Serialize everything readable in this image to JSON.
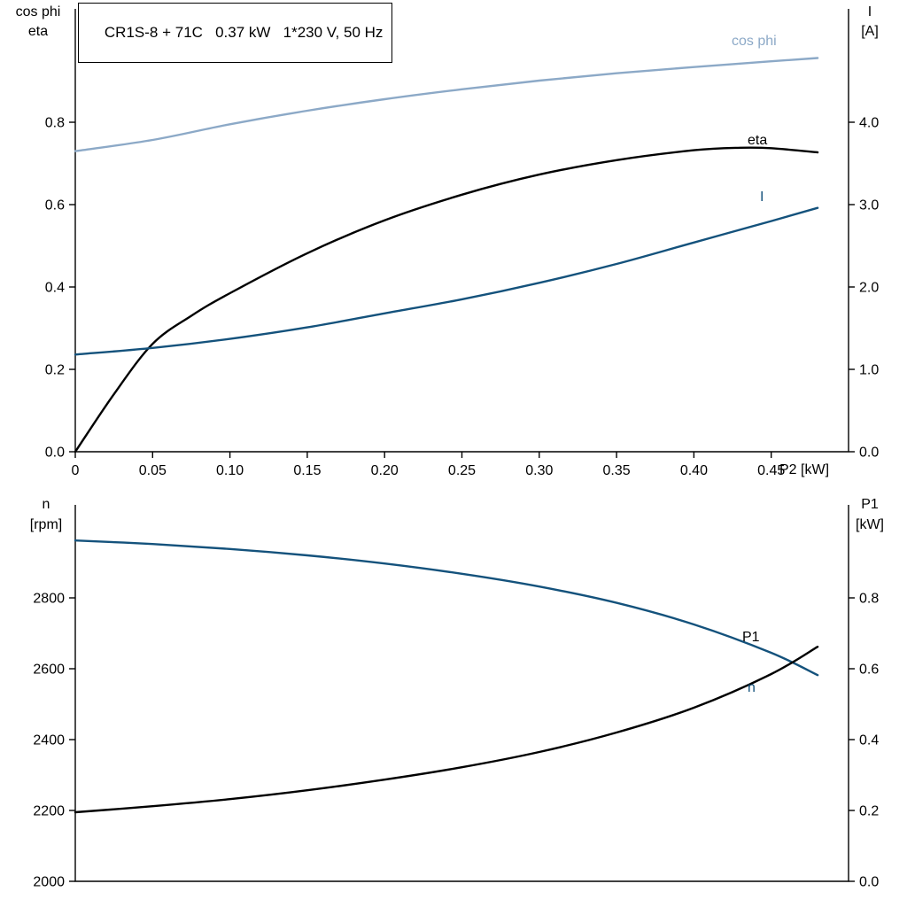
{
  "chart_data": [
    {
      "type": "line",
      "title": "CR1S-8 + 71C   0.37 kW   1*230 V, 50 Hz",
      "x": {
        "label": "P2 [kW]",
        "min": 0,
        "max": 0.5,
        "ticks": [
          {
            "v": 0,
            "label": "0"
          },
          {
            "v": 0.05,
            "label": "0.05"
          },
          {
            "v": 0.1,
            "label": "0.10"
          },
          {
            "v": 0.15,
            "label": "0.15"
          },
          {
            "v": 0.2,
            "label": "0.20"
          },
          {
            "v": 0.25,
            "label": "0.25"
          },
          {
            "v": 0.3,
            "label": "0.30"
          },
          {
            "v": 0.35,
            "label": "0.35"
          },
          {
            "v": 0.4,
            "label": "0.40"
          },
          {
            "v": 0.45,
            "label": "0.45"
          }
        ]
      },
      "left": {
        "label1": "cos phi",
        "label2": "eta",
        "min": 0,
        "max": 1.0753,
        "ticks": [
          {
            "v": 0.0,
            "label": "0.0"
          },
          {
            "v": 0.2,
            "label": "0.2"
          },
          {
            "v": 0.4,
            "label": "0.4"
          },
          {
            "v": 0.6,
            "label": "0.6"
          },
          {
            "v": 0.8,
            "label": "0.8"
          }
        ]
      },
      "right": {
        "label1": "I",
        "label2": "[A]",
        "min": 0,
        "max": 5.3763,
        "ticks": [
          {
            "v": 0.0,
            "label": "0.0"
          },
          {
            "v": 1.0,
            "label": "1.0"
          },
          {
            "v": 2.0,
            "label": "2.0"
          },
          {
            "v": 3.0,
            "label": "3.0"
          },
          {
            "v": 4.0,
            "label": "4.0"
          }
        ]
      },
      "series": [
        {
          "name": "cos phi",
          "axis": "left",
          "color": "#8CA9C7",
          "x": [
            0,
            0.05,
            0.1,
            0.15,
            0.2,
            0.25,
            0.3,
            0.35,
            0.4,
            0.45,
            0.48
          ],
          "y": [
            0.73,
            0.757,
            0.795,
            0.828,
            0.856,
            0.88,
            0.901,
            0.919,
            0.934,
            0.948,
            0.956
          ]
        },
        {
          "name": "eta",
          "axis": "left",
          "color": "#000000",
          "x": [
            0,
            0.025,
            0.05,
            0.075,
            0.1,
            0.15,
            0.2,
            0.25,
            0.3,
            0.35,
            0.4,
            0.43,
            0.45,
            0.48
          ],
          "y": [
            0,
            0.14,
            0.262,
            0.33,
            0.385,
            0.482,
            0.562,
            0.624,
            0.673,
            0.708,
            0.732,
            0.738,
            0.737,
            0.727
          ]
        },
        {
          "name": "I",
          "axis": "right",
          "color": "#14527C",
          "x": [
            0,
            0.05,
            0.1,
            0.15,
            0.2,
            0.25,
            0.3,
            0.35,
            0.4,
            0.45,
            0.48
          ],
          "y": [
            1.18,
            1.26,
            1.37,
            1.51,
            1.68,
            1.85,
            2.05,
            2.28,
            2.54,
            2.8,
            2.96
          ]
        }
      ]
    },
    {
      "type": "line",
      "x": {
        "label": "",
        "min": 0,
        "max": 0.5,
        "ticks": []
      },
      "left": {
        "label1": "n",
        "label2": "[rpm]",
        "min": 2000,
        "max": 3062.5,
        "ticks": [
          {
            "v": 2000,
            "label": "2000"
          },
          {
            "v": 2200,
            "label": "2200"
          },
          {
            "v": 2400,
            "label": "2400"
          },
          {
            "v": 2600,
            "label": "2600"
          },
          {
            "v": 2800,
            "label": "2800"
          }
        ]
      },
      "right": {
        "label1": "P1",
        "label2": "[kW]",
        "min": 0,
        "max": 1.0625,
        "ticks": [
          {
            "v": 0.0,
            "label": "0.0"
          },
          {
            "v": 0.2,
            "label": "0.2"
          },
          {
            "v": 0.4,
            "label": "0.4"
          },
          {
            "v": 0.6,
            "label": "0.6"
          },
          {
            "v": 0.8,
            "label": "0.8"
          }
        ]
      },
      "series": [
        {
          "name": "n",
          "axis": "left",
          "color": "#14527C",
          "x": [
            0,
            0.05,
            0.1,
            0.15,
            0.2,
            0.25,
            0.3,
            0.35,
            0.4,
            0.45,
            0.48
          ],
          "y": [
            2962,
            2952,
            2938,
            2920,
            2897,
            2868,
            2832,
            2786,
            2725,
            2645,
            2582
          ]
        },
        {
          "name": "P1",
          "axis": "right",
          "color": "#000000",
          "x": [
            0,
            0.05,
            0.1,
            0.15,
            0.2,
            0.25,
            0.3,
            0.35,
            0.4,
            0.45,
            0.48
          ],
          "y": [
            0.195,
            0.212,
            0.232,
            0.257,
            0.287,
            0.322,
            0.365,
            0.42,
            0.49,
            0.585,
            0.662
          ]
        }
      ]
    }
  ]
}
